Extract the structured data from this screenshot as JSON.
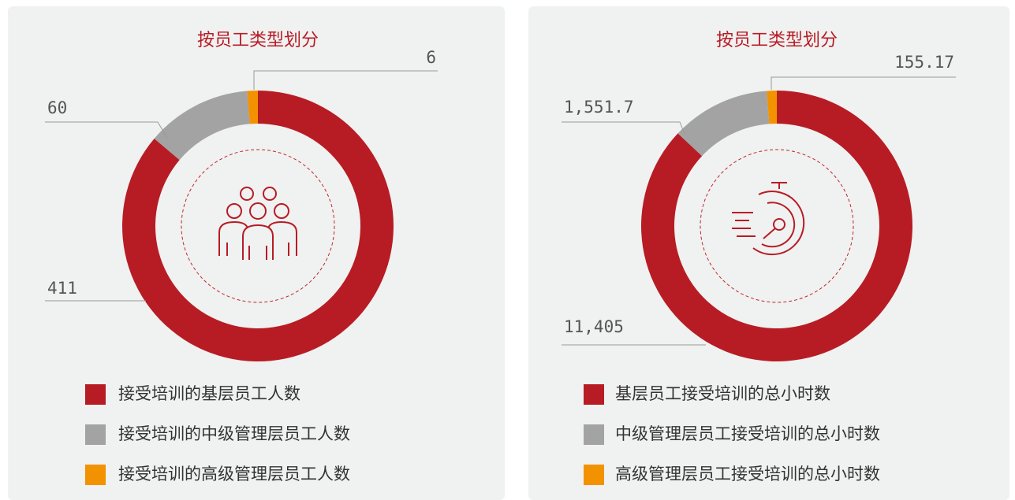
{
  "chart_data": [
    {
      "type": "pie",
      "title": "按员工类型划分",
      "categories": [
        "接受培训的基层员工人数",
        "接受培训的中级管理层员工人数",
        "接受培训的高级管理层员工人数"
      ],
      "values": [
        411,
        60,
        6
      ],
      "colors": [
        "#b71c24",
        "#a3a3a3",
        "#f39200"
      ]
    },
    {
      "type": "pie",
      "title": "按员工类型划分",
      "categories": [
        "基层员工接受培训的总小时数",
        "中级管理层员工接受培训的总小时数",
        "高级管理层员工接受培训的总小时数"
      ],
      "values": [
        11405,
        1551.7,
        155.17
      ],
      "value_labels": [
        "11,405",
        "1,551.7",
        "155.17"
      ],
      "colors": [
        "#b71c24",
        "#a3a3a3",
        "#f39200"
      ]
    }
  ]
}
